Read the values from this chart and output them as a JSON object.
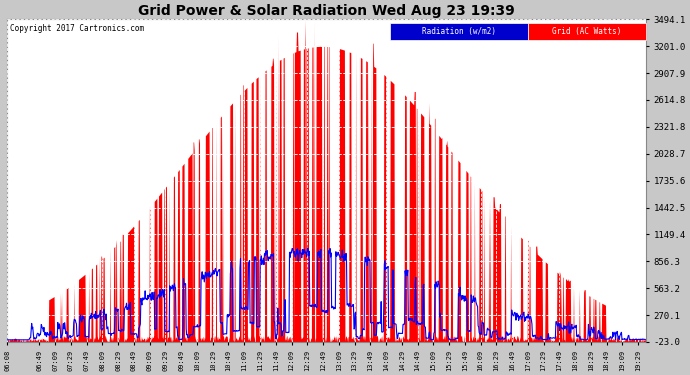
{
  "title": "Grid Power & Solar Radiation Wed Aug 23 19:39",
  "copyright": "Copyright 2017 Cartronics.com",
  "bg_color": "#c8c8c8",
  "plot_bg_color": "#ffffff",
  "grid_color": "#aaaaaa",
  "title_color": "#000000",
  "radiation_color": "#0000ff",
  "grid_power_color": "#ff0000",
  "grid_power_fill": "#ff0000",
  "y_ticks": [
    -23.0,
    270.1,
    563.2,
    856.3,
    1149.4,
    1442.5,
    1735.6,
    2028.7,
    2321.8,
    2614.8,
    2907.9,
    3201.0,
    3494.1
  ],
  "ylim": [
    -23.0,
    3494.1
  ],
  "x_labels": [
    "06:08",
    "06:49",
    "07:09",
    "07:29",
    "07:49",
    "08:09",
    "08:29",
    "08:49",
    "09:09",
    "09:29",
    "09:49",
    "10:09",
    "10:29",
    "10:49",
    "11:09",
    "11:29",
    "11:49",
    "12:09",
    "12:29",
    "12:49",
    "13:09",
    "13:29",
    "13:49",
    "14:09",
    "14:29",
    "14:49",
    "15:09",
    "15:29",
    "15:49",
    "16:09",
    "16:29",
    "16:49",
    "17:09",
    "17:29",
    "17:49",
    "18:09",
    "18:29",
    "18:49",
    "19:09",
    "19:29"
  ],
  "legend_radiation_bg": "#0000cc",
  "legend_radiation_text": "Radiation (w/m2)",
  "legend_grid_bg": "#ff0000",
  "legend_grid_text": "Grid (AC Watts)",
  "copyright_color": "#000000",
  "tick_label_color": "#000000"
}
